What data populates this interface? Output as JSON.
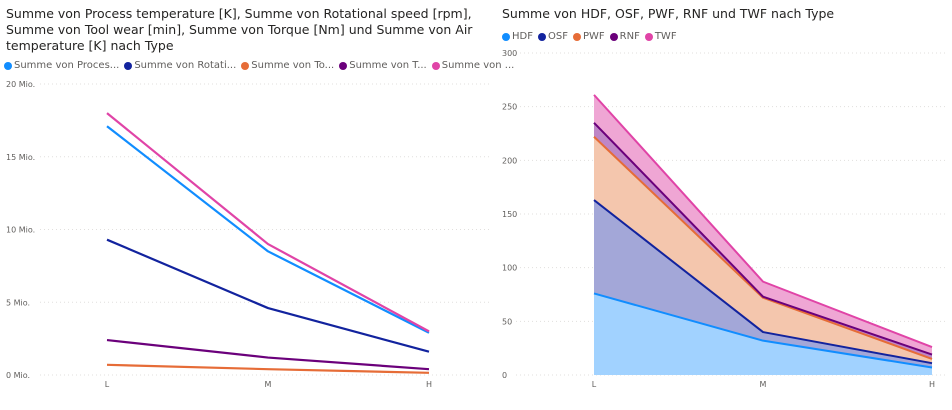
{
  "chart_data": [
    {
      "type": "line",
      "title": "Summe von Process temperature [K], Summe von Rotational speed [rpm], Summe von Tool wear [min], Summe von Torque [Nm] und Summe von Air temperature [K] nach Type",
      "categories": [
        "L",
        "M",
        "H"
      ],
      "y_tick_labels": [
        "0 Mio.",
        "5 Mio.",
        "10 Mio.",
        "15 Mio.",
        "20 Mio."
      ],
      "y_tick_values": [
        0,
        5000000,
        10000000,
        15000000,
        20000000
      ],
      "ylim": [
        0,
        20000000
      ],
      "grid": true,
      "legend_position": "top-left",
      "series": [
        {
          "name": "Summe von Proces...",
          "color": "#118DFF",
          "values": [
            17100000,
            8500000,
            2900000
          ]
        },
        {
          "name": "Summe von Rotati...",
          "color": "#12239E",
          "values": [
            9300000,
            4600000,
            1600000
          ]
        },
        {
          "name": "Summe von To...",
          "color": "#E66C37",
          "values": [
            700000,
            400000,
            150000
          ]
        },
        {
          "name": "Summe von T...",
          "color": "#6B007B",
          "values": [
            2400000,
            1200000,
            400000
          ]
        },
        {
          "name": "Summe von ...",
          "color": "#E044A7",
          "values": [
            18000000,
            9000000,
            3000000
          ]
        }
      ]
    },
    {
      "type": "area",
      "stacked": true,
      "title": "Summe von HDF, OSF, PWF, RNF und TWF nach Type",
      "categories": [
        "L",
        "M",
        "H"
      ],
      "y_tick_labels": [
        "0",
        "50",
        "100",
        "150",
        "200",
        "250",
        "300"
      ],
      "y_tick_values": [
        0,
        50,
        100,
        150,
        200,
        250,
        300
      ],
      "ylim": [
        0,
        300
      ],
      "grid": true,
      "legend_position": "top-left",
      "series": [
        {
          "name": "HDF",
          "color": "#118DFF",
          "fill": "#A1D2FF",
          "values": [
            76,
            32,
            7
          ]
        },
        {
          "name": "OSF",
          "color": "#12239E",
          "fill": "#A3A7D8",
          "values": [
            87,
            8,
            4
          ]
        },
        {
          "name": "PWF",
          "color": "#E66C37",
          "fill": "#F4C6AD",
          "values": [
            59,
            32,
            4
          ]
        },
        {
          "name": "RNF",
          "color": "#6B007B",
          "fill": "#BE86C6",
          "values": [
            13,
            1,
            4
          ]
        },
        {
          "name": "TWF",
          "color": "#E044A7",
          "fill": "#EFA6D4",
          "values": [
            26,
            14,
            7
          ]
        }
      ]
    }
  ]
}
